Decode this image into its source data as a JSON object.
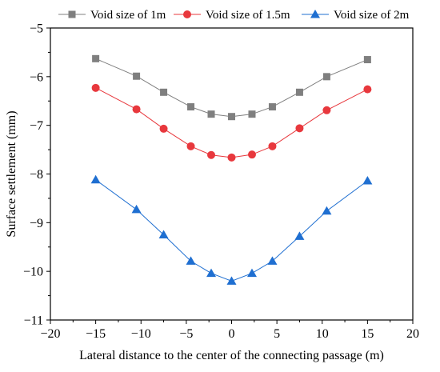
{
  "chart_data": {
    "type": "line",
    "xlabel": "Lateral distance to the center of the connecting passage (m)",
    "ylabel": "Surface settlement (mm)",
    "xlim": [
      -20,
      20
    ],
    "ylim": [
      -11,
      -5
    ],
    "xticks": [
      -20,
      -15,
      -10,
      -5,
      0,
      5,
      10,
      15,
      20
    ],
    "yticks": [
      -11,
      -10,
      -9,
      -8,
      -7,
      -6,
      -5
    ],
    "grid": false,
    "legend": "top",
    "x": [
      -15,
      -10.5,
      -7.5,
      -4.5,
      -2.25,
      0,
      2.25,
      4.5,
      7.5,
      10.5,
      15
    ],
    "series": [
      {
        "name": "Void size of 1m",
        "color": "#7f7f7f",
        "marker": "square",
        "values": [
          -5.63,
          -5.99,
          -6.32,
          -6.62,
          -6.77,
          -6.82,
          -6.77,
          -6.62,
          -6.32,
          -6.0,
          -5.65
        ]
      },
      {
        "name": "Void size of 1.5m",
        "color": "#e8383d",
        "marker": "circle",
        "values": [
          -6.23,
          -6.67,
          -7.07,
          -7.43,
          -7.61,
          -7.66,
          -7.6,
          -7.43,
          -7.06,
          -6.69,
          -6.26
        ]
      },
      {
        "name": "Void size of 2m",
        "color": "#1f6fd1",
        "marker": "triangle",
        "values": [
          -8.12,
          -8.73,
          -9.25,
          -9.79,
          -10.04,
          -10.2,
          -10.04,
          -9.79,
          -9.28,
          -8.76,
          -8.14
        ]
      }
    ]
  }
}
